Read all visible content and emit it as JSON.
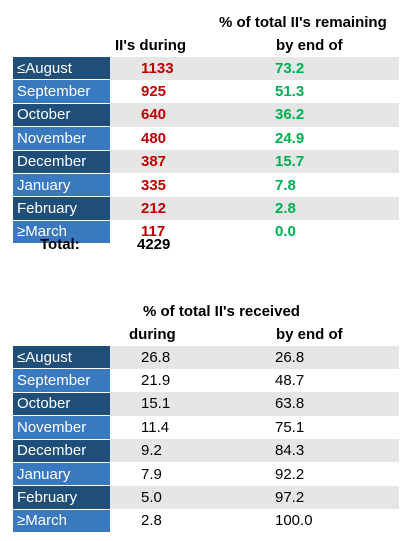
{
  "table1": {
    "header_line1": "% of total II's remaining",
    "col1_header": "II's during",
    "col2_header": "by end of",
    "rows": [
      {
        "month": "≤August",
        "during": "1133",
        "remaining": "73.2"
      },
      {
        "month": "September",
        "during": "925",
        "remaining": "51.3"
      },
      {
        "month": "October",
        "during": "640",
        "remaining": "36.2"
      },
      {
        "month": "November",
        "during": "480",
        "remaining": "24.9"
      },
      {
        "month": "December",
        "during": "387",
        "remaining": "15.7"
      },
      {
        "month": "January",
        "during": "335",
        "remaining": "7.8"
      },
      {
        "month": "February",
        "during": "212",
        "remaining": "2.8"
      },
      {
        "month": "≥March",
        "during": "117",
        "remaining": "0.0"
      }
    ],
    "total_label": "Total:",
    "total_value": "4229"
  },
  "table2": {
    "header_line1": "% of total II's received",
    "col1_header": "during",
    "col2_header": "by end of",
    "rows": [
      {
        "month": "≤August",
        "during": "26.8",
        "by_end": "26.8"
      },
      {
        "month": "September",
        "during": "21.9",
        "by_end": "48.7"
      },
      {
        "month": "October",
        "during": "15.1",
        "by_end": "63.8"
      },
      {
        "month": "November",
        "during": "11.4",
        "by_end": "75.1"
      },
      {
        "month": "December",
        "during": "9.2",
        "by_end": "84.3"
      },
      {
        "month": "January",
        "during": "7.9",
        "by_end": "92.2"
      },
      {
        "month": "February",
        "during": "5.0",
        "by_end": "97.2"
      },
      {
        "month": "≥March",
        "during": "2.8",
        "by_end": "100.0"
      }
    ]
  },
  "colors": {
    "month_dark": "#1f4e79",
    "month_light": "#3a78c0",
    "stripe": "#e6e6e6",
    "count_red": "#c00000",
    "percent_green": "#00b050"
  }
}
